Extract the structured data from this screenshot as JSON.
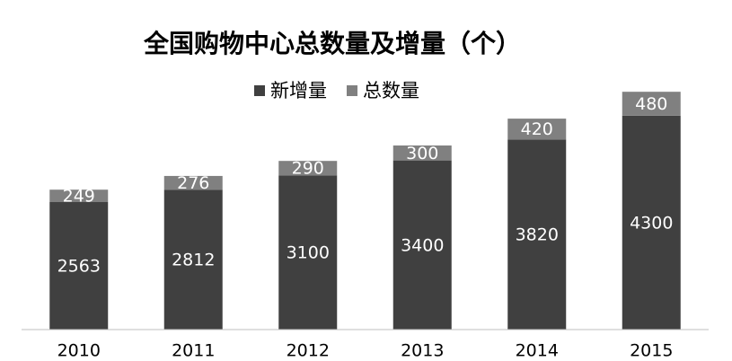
{
  "chart_data": {
    "type": "stacked-bar",
    "title": "全国购物中心总数量及增量（个）",
    "categories": [
      "2010",
      "2011",
      "2012",
      "2013",
      "2014",
      "2015"
    ],
    "series": [
      {
        "name": "新增量",
        "color": "#404040",
        "values": [
          2563,
          2812,
          3100,
          3400,
          3820,
          4300
        ]
      },
      {
        "name": "总数量",
        "color": "#808080",
        "values": [
          249,
          276,
          290,
          300,
          420,
          480
        ]
      }
    ],
    "ylim": [
      0,
      5000
    ],
    "legend": "top"
  }
}
